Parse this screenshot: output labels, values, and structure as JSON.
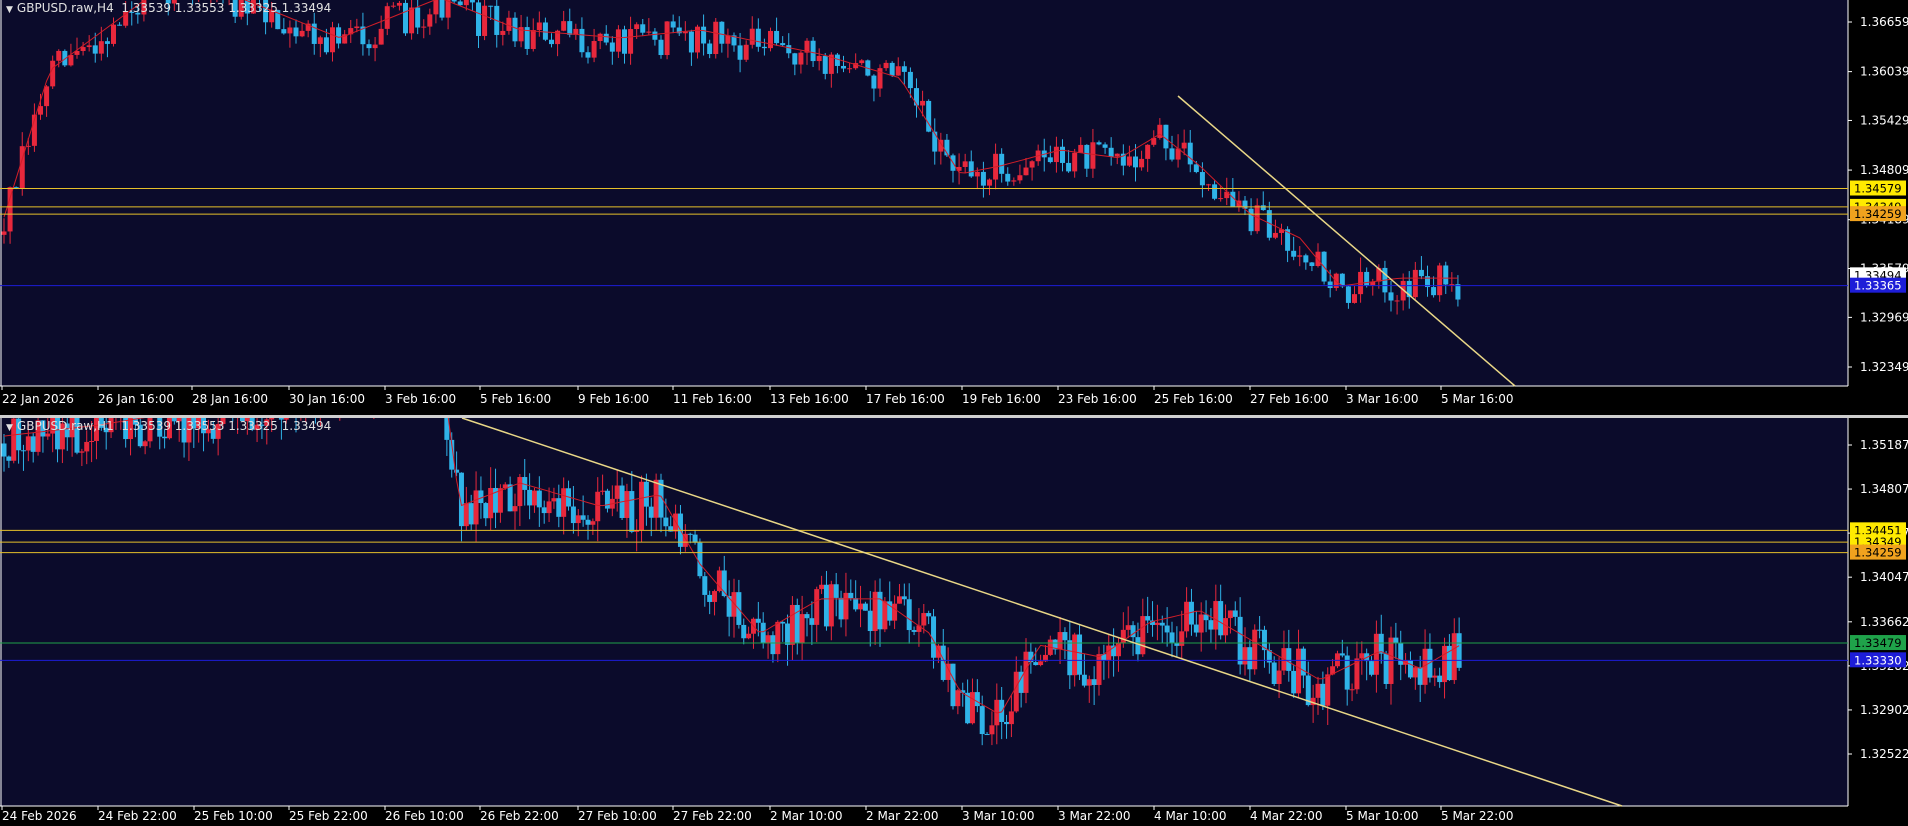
{
  "colors": {
    "background": "#0b0b2b",
    "bull_candle": "#e8283c",
    "bear_candle": "#2fb3e8",
    "moving_average": "#d21e28",
    "trendline": "#e9d787",
    "level_line": "#e6c02a",
    "bid_line": "#1d1dd8",
    "axis_text": "#ffffff",
    "separator": "#cfcfcf"
  },
  "panels": [
    {
      "id": "h4",
      "title": "GBPUSD.raw,H4  1.33539 1.33553 1.33325 1.33494",
      "y_ticks": [
        {
          "v": 1.36659,
          "t": "1.36659"
        },
        {
          "v": 1.36039,
          "t": "1.36039"
        },
        {
          "v": 1.35429,
          "t": "1.35429"
        },
        {
          "v": 1.34809,
          "t": "1.34809"
        },
        {
          "v": 1.34189,
          "t": "1.34189"
        },
        {
          "v": 1.33579,
          "t": "1.33579"
        },
        {
          "v": 1.32969,
          "t": "1.32969"
        },
        {
          "v": 1.32349,
          "t": "1.32349"
        }
      ],
      "x_labels": [
        "22 Jan 2026",
        "26 Jan 16:00",
        "28 Jan 16:00",
        "30 Jan 16:00",
        "3 Feb 16:00",
        "5 Feb 16:00",
        "9 Feb 16:00",
        "11 Feb 16:00",
        "13 Feb 16:00",
        "17 Feb 16:00",
        "19 Feb 16:00",
        "23 Feb 16:00",
        "25 Feb 16:00",
        "27 Feb 16:00",
        "3 Mar 16:00",
        "5 Mar 16:00"
      ],
      "price_tags": [
        {
          "v": 1.34579,
          "t": "1.34579",
          "bg": "#ffea00",
          "fg": "#000000"
        },
        {
          "v": 1.34349,
          "t": "1.34349",
          "bg": "#ffea00",
          "fg": "#000000"
        },
        {
          "v": 1.34259,
          "t": "1.34259",
          "bg": "#f0a21e",
          "fg": "#000000"
        },
        {
          "v": 1.33494,
          "t": "1.33494",
          "bg": "#ffffff",
          "fg": "#000000"
        },
        {
          "v": 1.33365,
          "t": "1.33365",
          "bg": "#1d1dd8",
          "fg": "#ffffff"
        }
      ],
      "hlines": [
        {
          "v": 1.34579,
          "color": "#e6c02a"
        },
        {
          "v": 1.34349,
          "color": "#e6c02a"
        },
        {
          "v": 1.34259,
          "color": "#e6c02a"
        },
        {
          "v": 1.33365,
          "color": "#1d1dd8"
        }
      ]
    },
    {
      "id": "h1",
      "title": "GBPUSD.raw,H1  1.33539 1.33553 1.33325 1.33494",
      "y_ticks": [
        {
          "v": 1.35187,
          "t": "1.35187"
        },
        {
          "v": 1.34807,
          "t": "1.34807"
        },
        {
          "v": 1.34427,
          "t": "1.34427"
        },
        {
          "v": 1.34047,
          "t": "1.34047"
        },
        {
          "v": 1.33662,
          "t": "1.33662"
        },
        {
          "v": 1.33282,
          "t": "1.33282"
        },
        {
          "v": 1.32902,
          "t": "1.32902"
        },
        {
          "v": 1.32522,
          "t": "1.32522"
        }
      ],
      "x_labels": [
        "24 Feb 2026",
        "24 Feb 22:00",
        "25 Feb 10:00",
        "25 Feb 22:00",
        "26 Feb 10:00",
        "26 Feb 22:00",
        "27 Feb 10:00",
        "27 Feb 22:00",
        "2 Mar 10:00",
        "2 Mar 22:00",
        "3 Mar 10:00",
        "3 Mar 22:00",
        "4 Mar 10:00",
        "4 Mar 22:00",
        "5 Mar 10:00",
        "5 Mar 22:00"
      ],
      "price_tags": [
        {
          "v": 1.34451,
          "t": "1.34451",
          "bg": "#ffea00",
          "fg": "#000000"
        },
        {
          "v": 1.34349,
          "t": "1.34349",
          "bg": "#ffea00",
          "fg": "#000000"
        },
        {
          "v": 1.34259,
          "t": "1.34259",
          "bg": "#f0a21e",
          "fg": "#000000"
        },
        {
          "v": 1.33479,
          "t": "1.33479",
          "bg": "#1fa24a",
          "fg": "#000000"
        },
        {
          "v": 1.3333,
          "t": "1.33330",
          "bg": "#1d1dd8",
          "fg": "#ffffff"
        }
      ],
      "hlines": [
        {
          "v": 1.34451,
          "color": "#e6c02a"
        },
        {
          "v": 1.34349,
          "color": "#e6c02a"
        },
        {
          "v": 1.34259,
          "color": "#e6c02a"
        },
        {
          "v": 1.33479,
          "color": "#1fa24a"
        },
        {
          "v": 1.3333,
          "color": "#1d1dd8"
        }
      ]
    }
  ]
}
